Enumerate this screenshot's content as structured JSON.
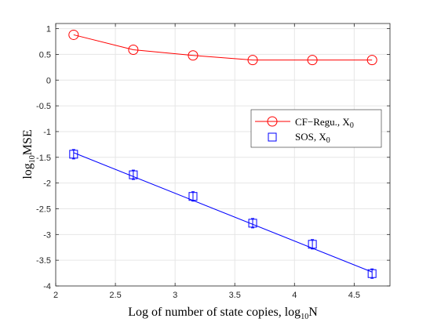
{
  "chart_data": {
    "type": "line",
    "title": "",
    "xlabel": {
      "main": "Log of number of state copies, log",
      "sub": "10",
      "tail": "N"
    },
    "ylabel": {
      "main": "log",
      "sub": "10",
      "tail": "MSE"
    },
    "xlim": [
      2,
      4.8
    ],
    "ylim": [
      -4,
      1.1
    ],
    "xticks": [
      2,
      2.5,
      3,
      3.5,
      4,
      4.5
    ],
    "xtick_labels": [
      "2",
      "2.5",
      "3",
      "3.5",
      "4",
      "4.5"
    ],
    "yticks": [
      1,
      0.5,
      0,
      -0.5,
      -1,
      -1.5,
      -2,
      -2.5,
      -3,
      -3.5,
      -4
    ],
    "ytick_labels": [
      "1",
      "0.5",
      "0",
      "-0.5",
      "-1",
      "-1.5",
      "-2",
      "-2.5",
      "-3",
      "-3.5",
      "-4"
    ],
    "grid": true,
    "legend_position": "center-right",
    "x": [
      2.15,
      2.65,
      3.15,
      3.65,
      4.15,
      4.65
    ],
    "series": [
      {
        "name": "CF−Regu., X",
        "name_sub": "0",
        "color": "#ff0000",
        "marker": "circle",
        "values": [
          0.88,
          0.59,
          0.48,
          0.39,
          0.39,
          0.39
        ]
      },
      {
        "name": "SOS, X",
        "name_sub": "0",
        "color": "#0000ff",
        "marker": "square",
        "values": [
          -1.44,
          -1.84,
          -2.26,
          -2.78,
          -3.19,
          -3.76
        ],
        "fit_line": [
          [
            2.15,
            -1.41
          ],
          [
            4.65,
            -3.73
          ]
        ]
      }
    ]
  }
}
